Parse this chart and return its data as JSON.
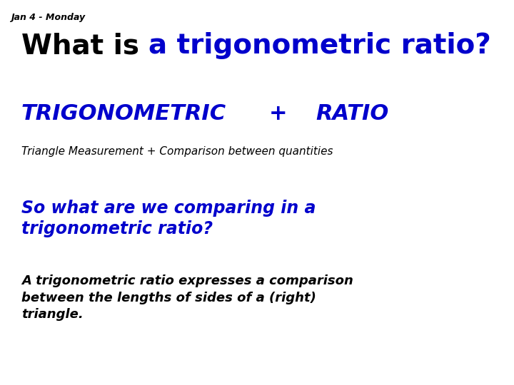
{
  "background_color": "#ffffff",
  "date_label": "Jan 4 - Monday",
  "date_color": "#000000",
  "date_fontsize": 9,
  "title_part1": "What is ",
  "title_part2": "a trigonometric ratio?",
  "title_part1_color": "#000000",
  "title_part2_color": "#0000cc",
  "title_fontsize": 28,
  "trig_label": "TRIGONOMETRIC",
  "plus_label": "+",
  "ratio_label": "RATIO",
  "trig_ratio_color": "#0000cc",
  "trig_ratio_fontsize": 22,
  "subtitle": "Triangle Measurement + Comparison between quantities",
  "subtitle_color": "#000000",
  "subtitle_fontsize": 11,
  "q2_text": "So what are we comparing in a\ntrigonometric ratio?",
  "q2_color": "#0000cc",
  "q2_fontsize": 17,
  "answer_text": "A trigonometric ratio expresses a comparison\nbetween the lengths of sides of a (right)\ntriangle.",
  "answer_color": "#000000",
  "answer_fontsize": 13
}
